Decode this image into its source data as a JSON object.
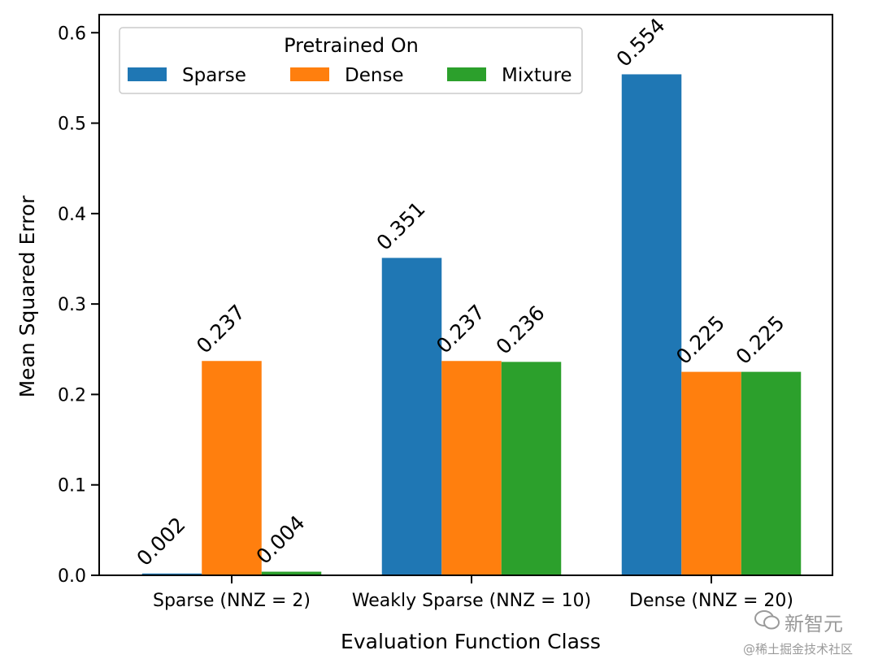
{
  "chart_data": {
    "type": "bar",
    "xlabel": "Evaluation Function Class",
    "ylabel": "Mean Squared Error",
    "categories": [
      "Sparse (NNZ = 2)",
      "Weakly Sparse (NNZ = 10)",
      "Dense (NNZ = 20)"
    ],
    "series": [
      {
        "name": "Sparse",
        "color": "#1f77b4",
        "values": [
          0.002,
          0.351,
          0.554
        ],
        "labels": [
          "0.002",
          "0.351",
          "0.554"
        ]
      },
      {
        "name": "Dense",
        "color": "#ff7f0e",
        "values": [
          0.237,
          0.237,
          0.225
        ],
        "labels": [
          "0.237",
          "0.237",
          "0.225"
        ]
      },
      {
        "name": "Mixture",
        "color": "#2ca02c",
        "values": [
          0.004,
          0.236,
          0.225
        ],
        "labels": [
          "0.004",
          "0.236",
          "0.225"
        ]
      }
    ],
    "ylim": [
      0,
      0.62
    ],
    "yticks": [
      "0.0",
      "0.1",
      "0.2",
      "0.3",
      "0.4",
      "0.5",
      "0.6"
    ],
    "legend": {
      "title": "Pretrained On",
      "placement": "top-left"
    },
    "grid": false
  },
  "watermark": {
    "brand": "新智元",
    "sub": "@稀土掘金技术社区"
  }
}
